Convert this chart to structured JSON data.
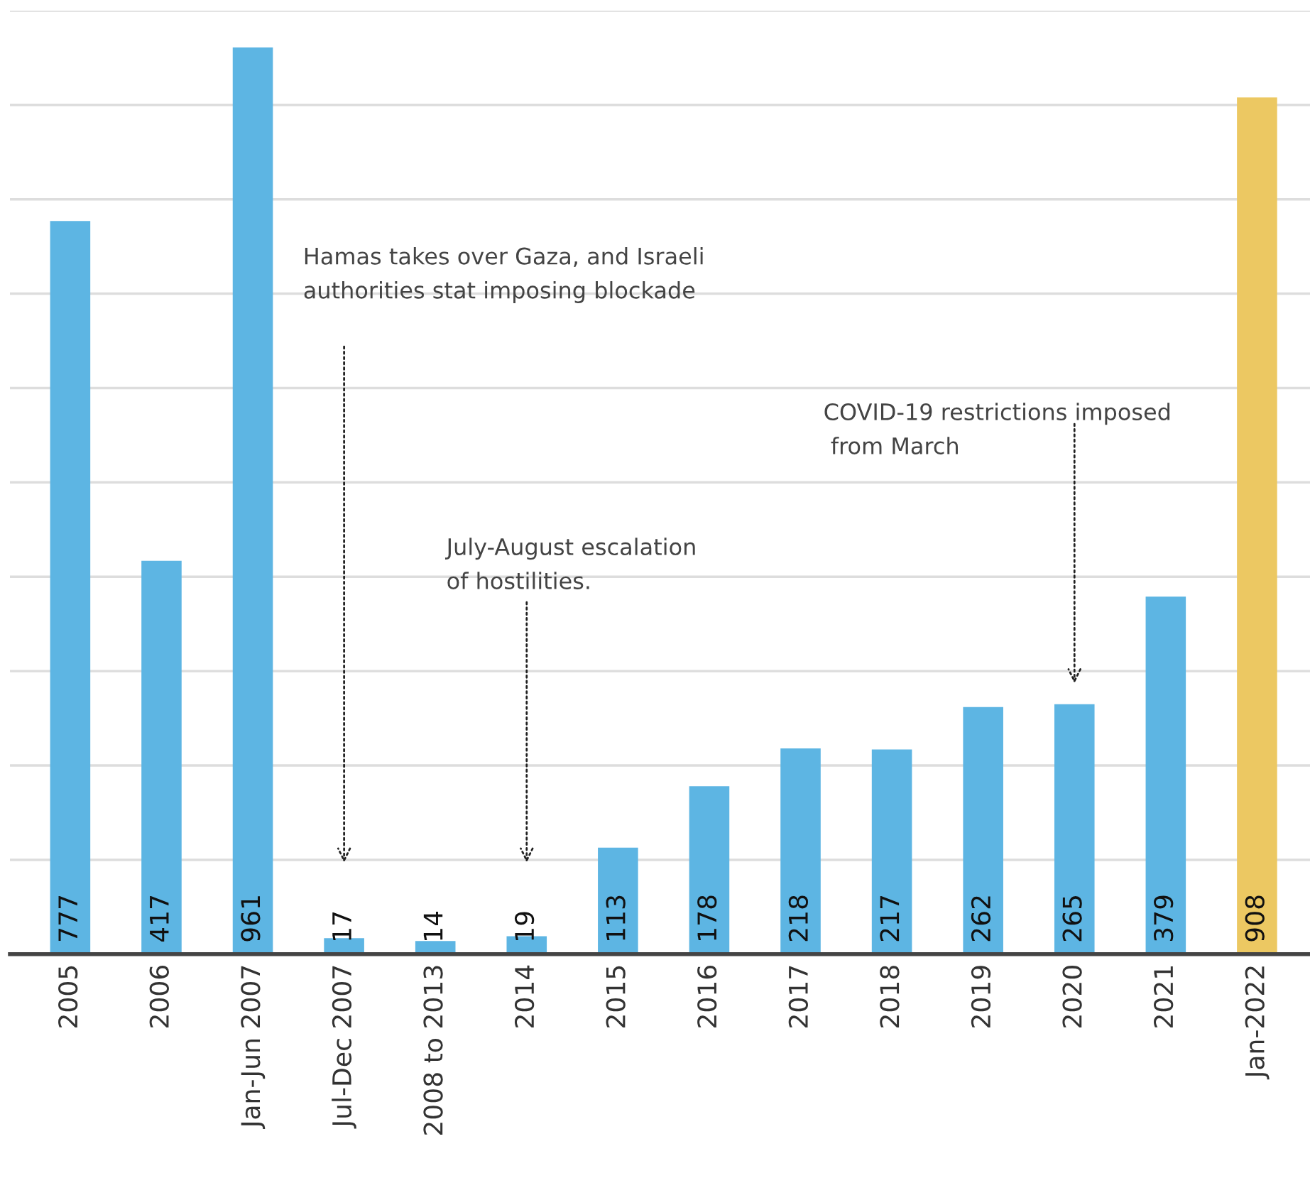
{
  "chart_data": {
    "type": "bar",
    "categories": [
      "2005",
      "2006",
      "Jan-Jun 2007",
      "Jul-Dec 2007",
      "2008 to 2013",
      "2014",
      "2015",
      "2016",
      "2017",
      "2018",
      "2019",
      "2020",
      "2021",
      "Jan-2022"
    ],
    "values": [
      777,
      417,
      961,
      17,
      14,
      19,
      113,
      178,
      218,
      217,
      262,
      265,
      379,
      908
    ],
    "colors": [
      "#5db5e3",
      "#5db5e3",
      "#5db5e3",
      "#5db5e3",
      "#5db5e3",
      "#5db5e3",
      "#5db5e3",
      "#5db5e3",
      "#5db5e3",
      "#5db5e3",
      "#5db5e3",
      "#5db5e3",
      "#5db5e3",
      "#ecc862"
    ],
    "ylim": [
      0,
      1000
    ],
    "yticks": [
      {
        "value": 0,
        "label": null
      },
      {
        "value": 100,
        "label": null
      },
      {
        "value": 200,
        "label": null
      },
      {
        "value": 300,
        "label": null
      },
      {
        "value": 400,
        "label": null
      },
      {
        "value": 500,
        "label": null
      },
      {
        "value": 600,
        "label": null
      },
      {
        "value": 700,
        "label": null
      },
      {
        "value": 800,
        "label": null
      },
      {
        "value": 900,
        "label": null
      },
      {
        "value": 1000,
        "label": null
      }
    ],
    "tick_labels": "x",
    "grid": "y",
    "data_labels": true,
    "annotations": [
      "Hamas takes over Gaza, and Israeli\nauthorities stat imposing blockade",
      "July-August escalation\nof hostilities.",
      "COVID-19 restrictions imposed\n from March"
    ]
  }
}
